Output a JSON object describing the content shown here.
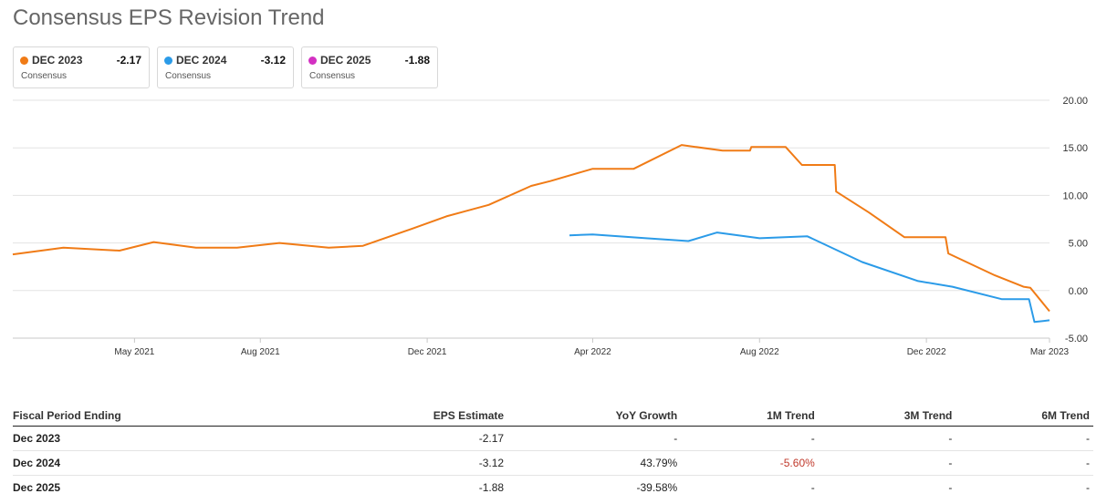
{
  "title": "Consensus EPS Revision Trend",
  "legend": [
    {
      "name": "DEC 2023",
      "value": "-2.17",
      "sub": "Consensus",
      "color": "#f07b16"
    },
    {
      "name": "DEC 2024",
      "value": "-3.12",
      "sub": "Consensus",
      "color": "#2b9be8"
    },
    {
      "name": "DEC 2025",
      "value": "-1.88",
      "sub": "Consensus",
      "color": "#d330c2"
    }
  ],
  "chart_data": {
    "type": "line",
    "x_range": [
      "2021-02-01",
      "2023-03-01"
    ],
    "ylim": [
      -5,
      20
    ],
    "y_ticks": [
      "20.00",
      "15.00",
      "10.00",
      "5.00",
      "0.00",
      "-5.00"
    ],
    "x_ticks": [
      {
        "label": "May 2021",
        "date": "2021-05-01"
      },
      {
        "label": "Aug 2021",
        "date": "2021-08-01"
      },
      {
        "label": "Dec 2021",
        "date": "2021-12-01"
      },
      {
        "label": "Apr 2022",
        "date": "2022-04-01"
      },
      {
        "label": "Aug 2022",
        "date": "2022-08-01"
      },
      {
        "label": "Dec 2022",
        "date": "2022-12-01"
      },
      {
        "label": "Mar 2023",
        "date": "2023-03-01"
      }
    ],
    "grid": true,
    "series": [
      {
        "name": "DEC 2023",
        "color": "#f07b16",
        "points": [
          [
            "2021-02-01",
            3.8
          ],
          [
            "2021-03-10",
            4.5
          ],
          [
            "2021-04-20",
            4.2
          ],
          [
            "2021-05-15",
            5.1
          ],
          [
            "2021-06-15",
            4.5
          ],
          [
            "2021-07-15",
            4.5
          ],
          [
            "2021-08-15",
            5.0
          ],
          [
            "2021-09-20",
            4.5
          ],
          [
            "2021-10-15",
            4.7
          ],
          [
            "2021-11-20",
            6.5
          ],
          [
            "2021-12-15",
            7.8
          ],
          [
            "2022-01-15",
            9.0
          ],
          [
            "2022-02-15",
            11.0
          ],
          [
            "2022-03-01",
            11.5
          ],
          [
            "2022-04-01",
            12.8
          ],
          [
            "2022-05-01",
            12.8
          ],
          [
            "2022-06-05",
            15.3
          ],
          [
            "2022-07-05",
            14.7
          ],
          [
            "2022-07-25",
            14.7
          ],
          [
            "2022-07-26",
            15.1
          ],
          [
            "2022-08-20",
            15.1
          ],
          [
            "2022-09-01",
            13.2
          ],
          [
            "2022-09-25",
            13.2
          ],
          [
            "2022-09-26",
            10.4
          ],
          [
            "2022-10-20",
            8.2
          ],
          [
            "2022-11-15",
            5.6
          ],
          [
            "2022-12-15",
            5.6
          ],
          [
            "2022-12-17",
            3.9
          ],
          [
            "2023-01-20",
            1.6
          ],
          [
            "2023-02-10",
            0.4
          ],
          [
            "2023-02-15",
            0.3
          ],
          [
            "2023-03-01",
            -2.17
          ]
        ]
      },
      {
        "name": "DEC 2024",
        "color": "#2b9be8",
        "points": [
          [
            "2022-03-15",
            5.8
          ],
          [
            "2022-04-01",
            5.9
          ],
          [
            "2022-05-10",
            5.5
          ],
          [
            "2022-06-10",
            5.2
          ],
          [
            "2022-07-01",
            6.1
          ],
          [
            "2022-08-01",
            5.5
          ],
          [
            "2022-09-05",
            5.7
          ],
          [
            "2022-10-15",
            3.0
          ],
          [
            "2022-11-25",
            1.0
          ],
          [
            "2022-12-20",
            0.4
          ],
          [
            "2023-01-25",
            -0.9
          ],
          [
            "2023-02-14",
            -0.9
          ],
          [
            "2023-02-18",
            -3.3
          ],
          [
            "2023-03-01",
            -3.12
          ]
        ]
      }
    ]
  },
  "table": {
    "headers": [
      "Fiscal Period Ending",
      "EPS Estimate",
      "YoY Growth",
      "1M Trend",
      "3M Trend",
      "6M Trend"
    ],
    "rows": [
      [
        "Dec 2023",
        "-2.17",
        "-",
        "-",
        "-",
        "-"
      ],
      [
        "Dec 2024",
        "-3.12",
        "43.79%",
        "-5.60%",
        "-",
        "-"
      ],
      [
        "Dec 2025",
        "-1.88",
        "-39.58%",
        "-",
        "-",
        "-"
      ]
    ]
  }
}
